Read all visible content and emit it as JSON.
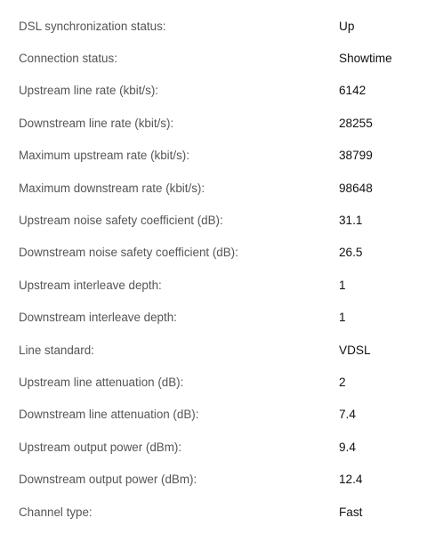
{
  "rows": [
    {
      "label": "DSL synchronization status:",
      "value": "Up"
    },
    {
      "label": "Connection status:",
      "value": "Showtime"
    },
    {
      "label": "Upstream line rate (kbit/s):",
      "value": "6142"
    },
    {
      "label": "Downstream line rate (kbit/s):",
      "value": "28255"
    },
    {
      "label": "Maximum upstream rate (kbit/s):",
      "value": "38799"
    },
    {
      "label": "Maximum downstream rate (kbit/s):",
      "value": "98648"
    },
    {
      "label": "Upstream noise safety coefficient (dB):",
      "value": "31.1"
    },
    {
      "label": "Downstream noise safety coefficient (dB):",
      "value": "26.5"
    },
    {
      "label": "Upstream interleave depth:",
      "value": "1"
    },
    {
      "label": "Downstream interleave depth:",
      "value": "1"
    },
    {
      "label": "Line standard:",
      "value": "VDSL"
    },
    {
      "label": "Upstream line attenuation (dB):",
      "value": "2"
    },
    {
      "label": "Downstream line attenuation (dB):",
      "value": "7.4"
    },
    {
      "label": "Upstream output power (dBm):",
      "value": "9.4"
    },
    {
      "label": "Downstream output power (dBm):",
      "value": "12.4"
    },
    {
      "label": "Channel type:",
      "value": "Fast"
    }
  ]
}
